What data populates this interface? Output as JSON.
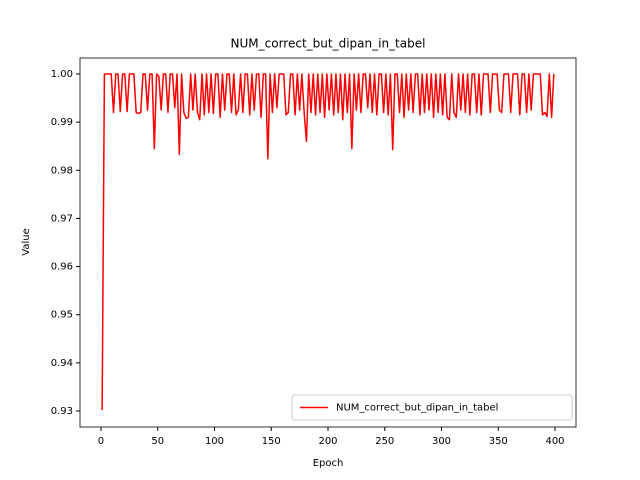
{
  "chart_data": {
    "type": "line",
    "title": "NUM_correct_but_dipan_in_tabel",
    "xlabel": "Epoch",
    "ylabel": "Value",
    "x": [
      1,
      3,
      5,
      7,
      9,
      11,
      13,
      15,
      17,
      19,
      21,
      23,
      25,
      27,
      29,
      31,
      33,
      35,
      37,
      39,
      41,
      43,
      45,
      47,
      49,
      51,
      53,
      55,
      57,
      59,
      61,
      63,
      65,
      67,
      69,
      71,
      73,
      75,
      77,
      79,
      81,
      83,
      85,
      87,
      89,
      91,
      93,
      95,
      97,
      99,
      101,
      103,
      105,
      107,
      109,
      111,
      113,
      115,
      117,
      119,
      121,
      123,
      125,
      127,
      129,
      131,
      133,
      135,
      137,
      139,
      141,
      143,
      145,
      147,
      149,
      151,
      153,
      155,
      157,
      159,
      161,
      163,
      165,
      167,
      169,
      171,
      173,
      175,
      177,
      179,
      181,
      183,
      185,
      187,
      189,
      191,
      193,
      195,
      197,
      199,
      201,
      203,
      205,
      207,
      209,
      211,
      213,
      215,
      217,
      219,
      221,
      223,
      225,
      227,
      229,
      231,
      233,
      235,
      237,
      239,
      241,
      243,
      245,
      247,
      249,
      251,
      253,
      255,
      257,
      259,
      261,
      263,
      265,
      267,
      269,
      271,
      273,
      275,
      277,
      279,
      281,
      283,
      285,
      287,
      289,
      291,
      293,
      295,
      297,
      299,
      301,
      303,
      305,
      307,
      309,
      311,
      313,
      315,
      317,
      319,
      321,
      323,
      325,
      327,
      329,
      331,
      333,
      335,
      337,
      339,
      341,
      343,
      345,
      347,
      349,
      351,
      353,
      355,
      357,
      359,
      361,
      363,
      365,
      367,
      369,
      371,
      373,
      375,
      377,
      379,
      381,
      383,
      385,
      387,
      389,
      391,
      393,
      395,
      397,
      399
    ],
    "series": [
      {
        "name": "NUM_correct_but_dipan_in_tabel",
        "color": "#ff0000",
        "values": [
          0.9302,
          1,
          1,
          1,
          1,
          0.992,
          1,
          1,
          0.9922,
          1,
          1,
          0.9922,
          1,
          1,
          1,
          0.992,
          0.9918,
          0.992,
          1,
          1,
          0.9925,
          1,
          1,
          0.9845,
          1,
          0.9995,
          0.9925,
          1,
          1,
          0.992,
          1,
          1,
          0.993,
          1,
          0.9833,
          1,
          0.992,
          0.9908,
          0.991,
          1,
          0.9925,
          1,
          0.992,
          0.9905,
          1,
          0.9915,
          1,
          0.992,
          1,
          0.9918,
          1,
          1,
          0.991,
          1,
          0.9925,
          1,
          1,
          0.992,
          1,
          0.9915,
          0.9925,
          1,
          0.992,
          1,
          1,
          0.9915,
          1,
          0.9925,
          1,
          1,
          0.991,
          1,
          1,
          0.9824,
          1,
          0.992,
          1,
          0.993,
          1,
          1,
          1,
          0.9915,
          0.992,
          1,
          1,
          0.9915,
          1,
          0.9925,
          1,
          0.992,
          0.986,
          1,
          0.992,
          1,
          0.9915,
          1,
          0.992,
          1,
          0.991,
          1,
          0.9925,
          1,
          0.9915,
          1,
          0.992,
          1,
          0.9905,
          1,
          0.992,
          1,
          0.9845,
          1,
          0.9925,
          1,
          0.992,
          1,
          1,
          0.993,
          1,
          0.992,
          1,
          0.9915,
          1,
          1,
          0.992,
          1,
          0.9915,
          1,
          0.9843,
          1,
          1,
          0.992,
          1,
          0.991,
          1,
          0.9925,
          1,
          0.992,
          1,
          1,
          0.9915,
          1,
          0.992,
          1,
          0.9925,
          1,
          0.991,
          1,
          0.992,
          1,
          0.9915,
          1,
          0.991,
          0.9905,
          1,
          0.992,
          0.991,
          1,
          0.9925,
          1,
          0.992,
          1,
          0.9915,
          1,
          1,
          0.992,
          1,
          0.9915,
          1,
          1,
          1,
          0.992,
          1,
          1,
          1,
          0.9925,
          0.992,
          1,
          1,
          1,
          0.992,
          1,
          1,
          1,
          0.9915,
          1,
          1,
          0.992,
          1,
          0.9925,
          1,
          1,
          1,
          1,
          0.9915,
          0.992,
          0.9912,
          1,
          0.991,
          1
        ]
      }
    ],
    "xlim": [
      -18.5,
      418.5
    ],
    "xticks": [
      0,
      50,
      100,
      150,
      200,
      250,
      300,
      350,
      400
    ],
    "ylim": [
      0.92668,
      1.00332
    ],
    "yticks": [
      0.93,
      0.94,
      0.95,
      0.96,
      0.97,
      0.98,
      0.99,
      {
        "value": 1,
        "label": "1.00"
      }
    ],
    "grid": false,
    "legend": "lower right"
  }
}
